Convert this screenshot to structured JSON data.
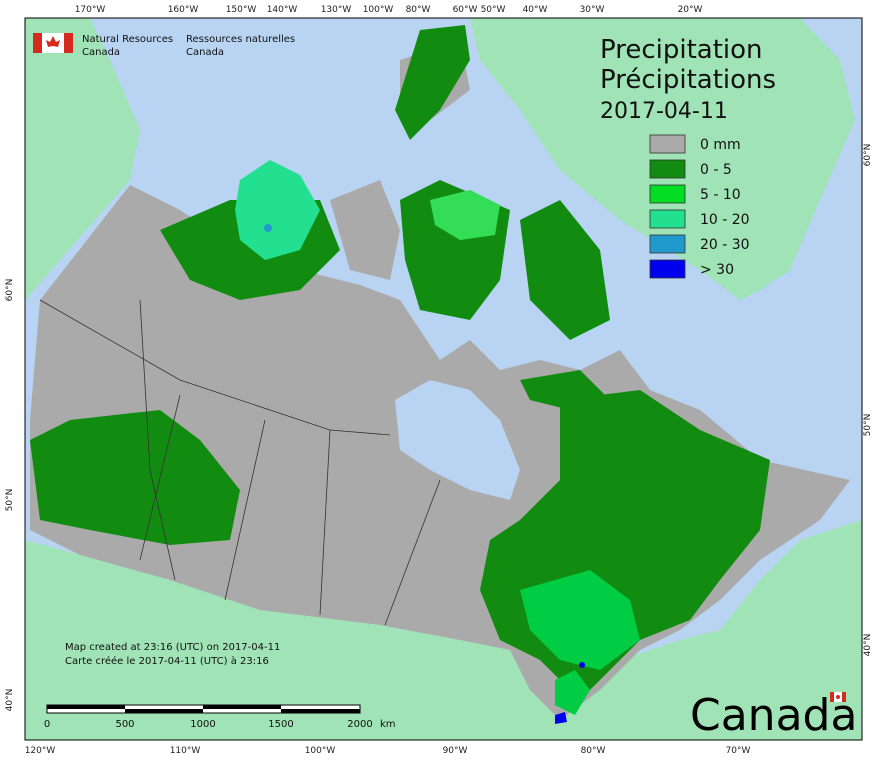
{
  "header": {
    "org_en_1": "Natural Resources",
    "org_en_2": "Canada",
    "org_fr_1": "Ressources naturelles",
    "org_fr_2": "Canada"
  },
  "title": {
    "en": "Precipitation",
    "fr": "Précipitations",
    "date": "2017-04-11"
  },
  "legend": [
    {
      "label": "0 mm",
      "color": "#aaaaaa"
    },
    {
      "label": "0 - 5",
      "color": "#118c11"
    },
    {
      "label": "5 - 10",
      "color": "#00dd22"
    },
    {
      "label": "10 - 20",
      "color": "#22e090"
    },
    {
      "label": "20 - 30",
      "color": "#2299cc"
    },
    {
      "label": "> 30",
      "color": "#0000ee"
    }
  ],
  "graticule": {
    "top": [
      "170°W",
      "160°W",
      "150°W",
      "140°W",
      "130°W",
      "100°W",
      "80°W",
      "60°W",
      "50°W",
      "40°W",
      "30°W",
      "20°W"
    ],
    "bottom": [
      "120°W",
      "110°W",
      "100°W",
      "90°W",
      "80°W",
      "70°W"
    ],
    "left": [
      "60°N",
      "50°N",
      "40°N"
    ],
    "right": [
      "60°N",
      "50°N",
      "40°N"
    ]
  },
  "footer": {
    "line1": "Map created at 23:16 (UTC) on 2017-04-11",
    "line2": "Carte créée le 2017-04-11 (UTC) à 23:16"
  },
  "scale": {
    "ticks": [
      "0",
      "500",
      "1000",
      "1500",
      "2000"
    ],
    "unit": "km"
  },
  "wordmark": "Canada"
}
